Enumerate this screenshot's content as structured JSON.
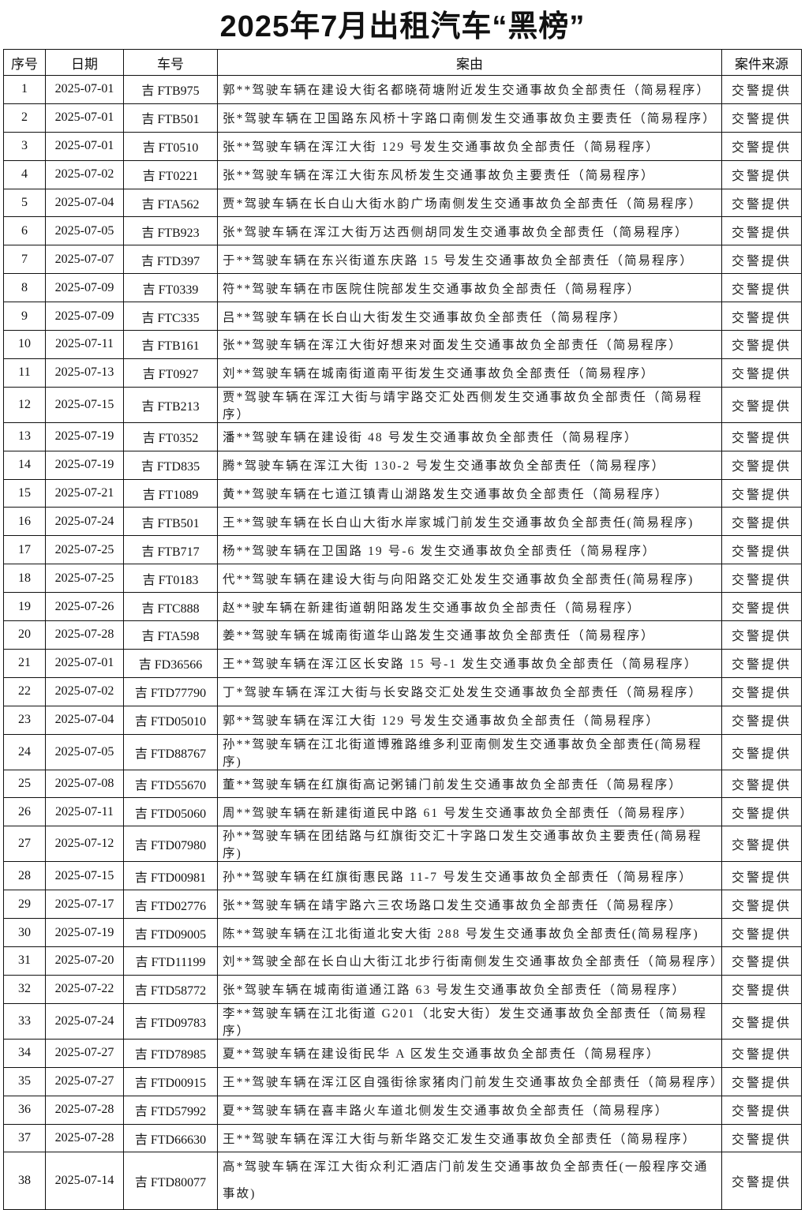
{
  "title": "2025年7月出租汽车“黑榜”",
  "headers": [
    "序号",
    "日期",
    "车号",
    "案由",
    "案件来源"
  ],
  "rows": [
    [
      "1",
      "2025-07-01",
      "吉 FTB975",
      "郭**驾驶车辆在建设大街名都晓荷塘附近发生交通事故负全部责任（简易程序）",
      "交警提供"
    ],
    [
      "2",
      "2025-07-01",
      "吉 FTB501",
      "张*驾驶车辆在卫国路东风桥十字路口南侧发生交通事故负主要责任（简易程序）",
      "交警提供"
    ],
    [
      "3",
      "2025-07-01",
      "吉 FT0510",
      "张**驾驶车辆在浑江大街 129 号发生交通事故负全部责任（简易程序）",
      "交警提供"
    ],
    [
      "4",
      "2025-07-02",
      "吉 FT0221",
      "张**驾驶车辆在浑江大街东风桥发生交通事故负主要责任（简易程序）",
      "交警提供"
    ],
    [
      "5",
      "2025-07-04",
      "吉 FTA562",
      "贾*驾驶车辆在长白山大街水韵广场南侧发生交通事故负全部责任（简易程序）",
      "交警提供"
    ],
    [
      "6",
      "2025-07-05",
      "吉 FTB923",
      "张*驾驶车辆在浑江大街万达西侧胡同发生交通事故负全部责任（简易程序）",
      "交警提供"
    ],
    [
      "7",
      "2025-07-07",
      "吉 FTD397",
      "于**驾驶车辆在东兴街道东庆路 15 号发生交通事故负全部责任（简易程序）",
      "交警提供"
    ],
    [
      "8",
      "2025-07-09",
      "吉 FT0339",
      "符**驾驶车辆在市医院住院部发生交通事故负全部责任（简易程序）",
      "交警提供"
    ],
    [
      "9",
      "2025-07-09",
      "吉 FTC335",
      "吕**驾驶车辆在长白山大街发生交通事故负全部责任（简易程序）",
      "交警提供"
    ],
    [
      "10",
      "2025-07-11",
      "吉 FTB161",
      "张**驾驶车辆在浑江大街好想来对面发生交通事故负全部责任（简易程序）",
      "交警提供"
    ],
    [
      "11",
      "2025-07-13",
      "吉 FT0927",
      "刘**驾驶车辆在城南街道南平街发生交通事故负全部责任（简易程序）",
      "交警提供"
    ],
    [
      "12",
      "2025-07-15",
      "吉 FTB213",
      "贾*驾驶车辆在浑江大街与靖宇路交汇处西侧发生交通事故负全部责任（简易程序）",
      "交警提供"
    ],
    [
      "13",
      "2025-07-19",
      "吉 FT0352",
      "潘**驾驶车辆在建设街 48 号发生交通事故负全部责任（简易程序）",
      "交警提供"
    ],
    [
      "14",
      "2025-07-19",
      "吉 FTD835",
      "腾*驾驶车辆在浑江大街 130-2 号发生交通事故负全部责任（简易程序）",
      "交警提供"
    ],
    [
      "15",
      "2025-07-21",
      "吉 FT1089",
      "黄**驾驶车辆在七道江镇青山湖路发生交通事故负全部责任（简易程序）",
      "交警提供"
    ],
    [
      "16",
      "2025-07-24",
      "吉 FTB501",
      "王**驾驶车辆在长白山大街水岸家城门前发生交通事故负全部责任(简易程序)",
      "交警提供"
    ],
    [
      "17",
      "2025-07-25",
      "吉 FTB717",
      "杨**驾驶车辆在卫国路 19 号-6 发生交通事故负全部责任（简易程序）",
      "交警提供"
    ],
    [
      "18",
      "2025-07-25",
      "吉 FT0183",
      "代**驾驶车辆在建设大街与向阳路交汇处发生交通事故负全部责任(简易程序)",
      "交警提供"
    ],
    [
      "19",
      "2025-07-26",
      "吉 FTC888",
      "赵**驶车辆在新建街道朝阳路发生交通事故负全部责任（简易程序）",
      "交警提供"
    ],
    [
      "20",
      "2025-07-28",
      "吉 FTA598",
      "姜**驾驶车辆在城南街道华山路发生交通事故负全部责任（简易程序）",
      "交警提供"
    ],
    [
      "21",
      "2025-07-01",
      "吉 FD36566",
      "王**驾驶车辆在浑江区长安路 15 号-1 发生交通事故负全部责任（简易程序）",
      "交警提供"
    ],
    [
      "22",
      "2025-07-02",
      "吉 FTD77790",
      "丁*驾驶车辆在浑江大街与长安路交汇处发生交通事故负全部责任（简易程序）",
      "交警提供"
    ],
    [
      "23",
      "2025-07-04",
      "吉 FTD05010",
      "郭**驾驶车辆在浑江大街 129 号发生交通事故负全部责任（简易程序）",
      "交警提供"
    ],
    [
      "24",
      "2025-07-05",
      "吉 FTD88767",
      "孙**驾驶车辆在江北街道博雅路维多利亚南侧发生交通事故负全部责任(简易程序)",
      "交警提供"
    ],
    [
      "25",
      "2025-07-08",
      "吉 FTD55670",
      "董**驾驶车辆在红旗街高记粥铺门前发生交通事故负全部责任（简易程序）",
      "交警提供"
    ],
    [
      "26",
      "2025-07-11",
      "吉 FTD05060",
      "周**驾驶车辆在新建街道民中路 61 号发生交通事故负全部责任（简易程序）",
      "交警提供"
    ],
    [
      "27",
      "2025-07-12",
      "吉 FTD07980",
      "孙**驾驶车辆在团结路与红旗街交汇十字路口发生交通事故负主要责任(简易程序)",
      "交警提供"
    ],
    [
      "28",
      "2025-07-15",
      "吉 FTD00981",
      "孙**驾驶车辆在红旗街惠民路 11-7 号发生交通事故负全部责任（简易程序）",
      "交警提供"
    ],
    [
      "29",
      "2025-07-17",
      "吉 FTD02776",
      "张**驾驶车辆在靖宇路六三农场路口发生交通事故负全部责任（简易程序）",
      "交警提供"
    ],
    [
      "30",
      "2025-07-19",
      "吉 FTD09005",
      "陈**驾驶车辆在江北街道北安大街 288 号发生交通事故负全部责任(简易程序)",
      "交警提供"
    ],
    [
      "31",
      "2025-07-20",
      "吉 FTD11199",
      "刘**驾驶全部在长白山大街江北步行街南侧发生交通事故负全部责任（简易程序）",
      "交警提供"
    ],
    [
      "32",
      "2025-07-22",
      "吉 FTD58772",
      "张*驾驶车辆在城南街道通江路 63 号发生交通事故负全部责任（简易程序）",
      "交警提供"
    ],
    [
      "33",
      "2025-07-24",
      "吉 FTD09783",
      "李**驾驶车辆在江北街道 G201（北安大街）发生交通事故负全部责任（简易程序）",
      "交警提供"
    ],
    [
      "34",
      "2025-07-27",
      "吉 FTD78985",
      "夏**驾驶车辆在建设街民华 A 区发生交通事故负全部责任（简易程序）",
      "交警提供"
    ],
    [
      "35",
      "2025-07-27",
      "吉 FTD00915",
      "王**驾驶车辆在浑江区自强街徐家猪肉门前发生交通事故负全部责任（简易程序）",
      "交警提供"
    ],
    [
      "36",
      "2025-07-28",
      "吉 FTD57992",
      "夏**驾驶车辆在喜丰路火车道北侧发生交通事故负全部责任（简易程序）",
      "交警提供"
    ],
    [
      "37",
      "2025-07-28",
      "吉 FTD66630",
      "王**驾驶车辆在浑江大街与新华路交汇发生交通事故负全部责任（简易程序）",
      "交警提供"
    ],
    [
      "38",
      "2025-07-14",
      "吉 FTD80077",
      "高*驾驶车辆在浑江大街众利汇酒店门前发生交通事故负全部责任(一般程序交通事故)",
      "交警提供"
    ]
  ]
}
